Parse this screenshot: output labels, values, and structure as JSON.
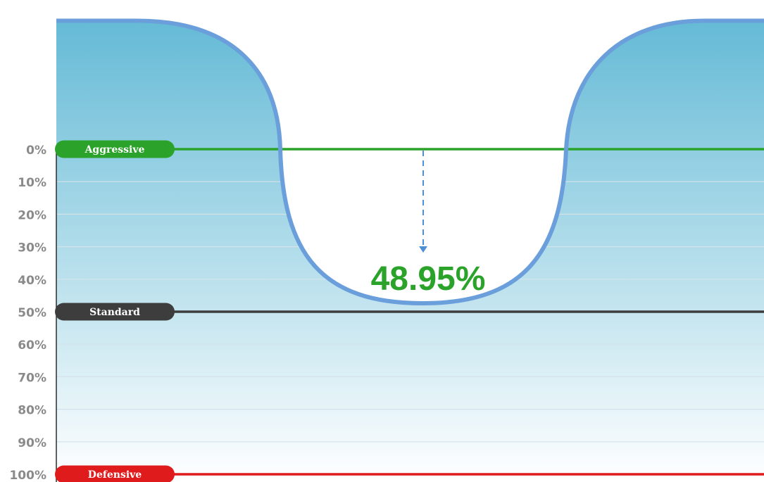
{
  "chart_data": {
    "type": "area",
    "title": "",
    "xlabel": "",
    "ylabel": "",
    "y_axis": {
      "tick_labels": [
        "0%",
        "10%",
        "20%",
        "30%",
        "40%",
        "50%",
        "60%",
        "70%",
        "80%",
        "90%",
        "100%"
      ],
      "range": [
        0,
        100
      ],
      "inverted": true,
      "grid": true
    },
    "curve": {
      "top_level": -39.5,
      "bottom_level": 47.4,
      "color": "#6a9fdb"
    },
    "reference_lines": [
      {
        "label": "Aggressive",
        "value": 0,
        "color": "#2ba32b"
      },
      {
        "label": "Standard",
        "value": 50,
        "color": "#3d3d3d"
      },
      {
        "label": "Defensive",
        "value": 100,
        "color": "#e01b1b"
      }
    ],
    "annotation": {
      "text": "48.95%",
      "value": 48.95,
      "color": "#2ba32b"
    },
    "fill_gradient": {
      "top": "#64bad6",
      "bottom": "#ffffff"
    },
    "gridline_color": "#d4e3ea",
    "axis_color": "#2b2b2b"
  }
}
